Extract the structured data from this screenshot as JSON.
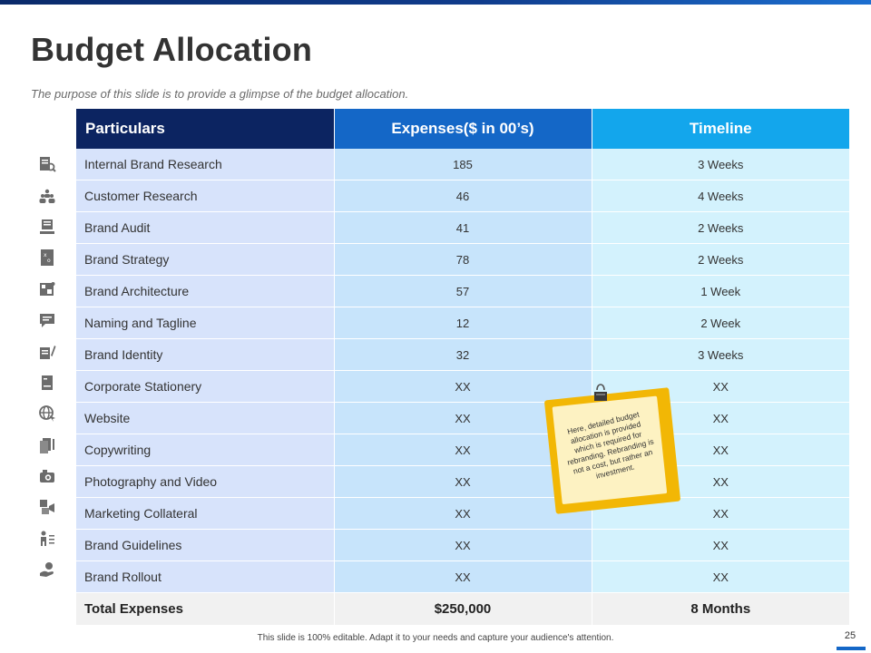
{
  "title": "Budget Allocation",
  "subtitle": "The purpose of this slide is to provide a glimpse of the budget allocation.",
  "table": {
    "headers": [
      "Particulars",
      "Expenses($ in 00’s)",
      "Timeline"
    ],
    "rows": [
      {
        "particular": "Internal Brand Research",
        "expense": "185",
        "timeline": "3 Weeks",
        "icon": "research-document-icon"
      },
      {
        "particular": "Customer Research",
        "expense": "46",
        "timeline": "4 Weeks",
        "icon": "people-group-icon"
      },
      {
        "particular": "Brand Audit",
        "expense": "41",
        "timeline": "2 Weeks",
        "icon": "audit-monitor-icon"
      },
      {
        "particular": "Brand Strategy",
        "expense": "78",
        "timeline": "2 Weeks",
        "icon": "strategy-board-icon"
      },
      {
        "particular": "Brand Architecture",
        "expense": "57",
        "timeline": "1 Week",
        "icon": "architecture-blocks-icon"
      },
      {
        "particular": "Naming and Tagline",
        "expense": "12",
        "timeline": "2 Week",
        "icon": "speech-bubble-icon"
      },
      {
        "particular": "Brand Identity",
        "expense": "32",
        "timeline": "3 Weeks",
        "icon": "identity-pen-icon"
      },
      {
        "particular": "Corporate Stationery",
        "expense": "XX",
        "timeline": "XX",
        "icon": "stationery-notebook-icon"
      },
      {
        "particular": "Website",
        "expense": "XX",
        "timeline": "XX",
        "icon": "globe-cursor-icon"
      },
      {
        "particular": "Copywriting",
        "expense": "XX",
        "timeline": "XX",
        "icon": "documents-pen-icon"
      },
      {
        "particular": "Photography and Video",
        "expense": "XX",
        "timeline": "XX",
        "icon": "camera-icon"
      },
      {
        "particular": "Marketing Collateral",
        "expense": "XX",
        "timeline": "XX",
        "icon": "megaphone-icon"
      },
      {
        "particular": "Brand Guidelines",
        "expense": "XX",
        "timeline": "XX",
        "icon": "person-checklist-icon"
      },
      {
        "particular": "Brand Rollout",
        "expense": "XX",
        "timeline": "XX",
        "icon": "hand-coin-icon"
      }
    ],
    "total": {
      "label": "Total Expenses",
      "expense": "$250,000",
      "timeline": "8 Months"
    }
  },
  "sticky_note": {
    "text": "Here, detailed budget allocation is provided which is required for rebranding. Rebranding is not a cost, but rather an investment."
  },
  "footer": "This slide is 100% editable. Adapt it to your needs and capture your audience's attention.",
  "page_number": "25",
  "colors": {
    "header_dark": "#0c2461",
    "header_mid": "#1467c7",
    "header_light": "#13a6ec",
    "note_yellow": "#f2b705"
  }
}
